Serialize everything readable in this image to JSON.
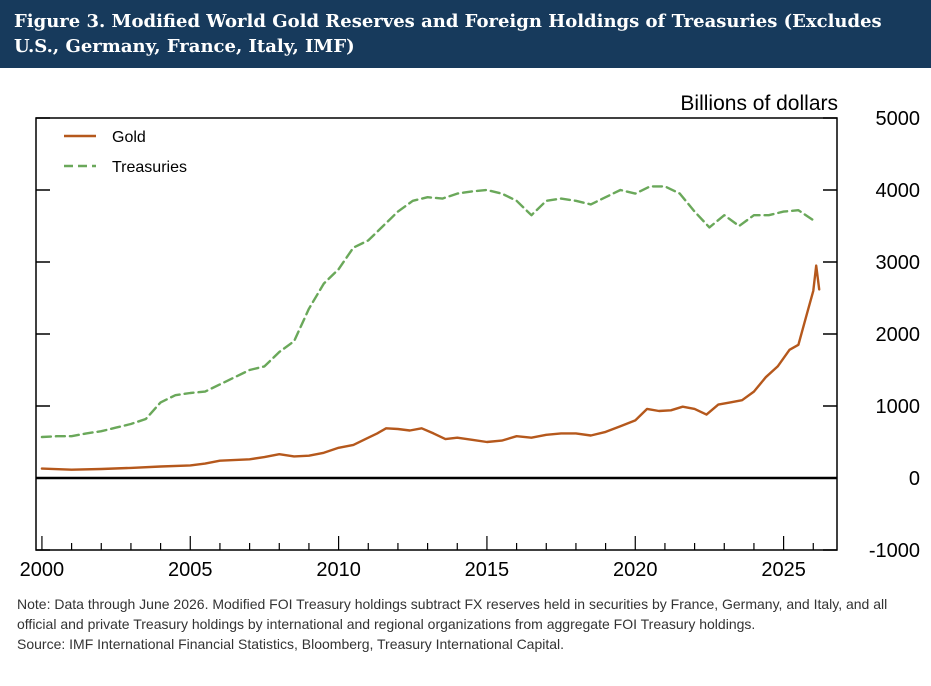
{
  "header": {
    "title": "Figure 3. Modified World Gold Reserves and Foreign Holdings of Treasuries (Excludes U.S., Germany, France, Italy, IMF)"
  },
  "colors": {
    "banner": "#173a5c",
    "gold": "#b5581c",
    "treasuries": "#6aa85a",
    "axis": "#000000"
  },
  "chart_data": {
    "type": "line",
    "ylabel": "Billions of dollars",
    "ylim": [
      -1000,
      5000
    ],
    "yticks": [
      -1000,
      0,
      1000,
      2000,
      3000,
      4000,
      5000
    ],
    "xlim": [
      1999.8,
      2026.8
    ],
    "xticks": [
      2000,
      2005,
      2010,
      2015,
      2020,
      2025
    ],
    "legend_position": "top-left",
    "grid": false,
    "zero_line": true,
    "series": [
      {
        "name": "Gold",
        "color": "#b5581c",
        "style": "solid",
        "x": [
          2000.0,
          2001.0,
          2002.0,
          2003.0,
          2004.0,
          2005.0,
          2005.5,
          2006.0,
          2007.0,
          2007.5,
          2008.0,
          2008.5,
          2009.0,
          2009.5,
          2010.0,
          2010.5,
          2011.0,
          2011.3,
          2011.6,
          2012.0,
          2012.4,
          2012.8,
          2013.2,
          2013.6,
          2014.0,
          2014.5,
          2015.0,
          2015.5,
          2016.0,
          2016.5,
          2017.0,
          2017.5,
          2018.0,
          2018.5,
          2019.0,
          2019.5,
          2020.0,
          2020.4,
          2020.8,
          2021.2,
          2021.6,
          2022.0,
          2022.4,
          2022.8,
          2023.2,
          2023.6,
          2024.0,
          2024.4,
          2024.8,
          2025.2,
          2025.5,
          2025.8,
          2026.0,
          2026.1,
          2026.2
        ],
        "y": [
          130,
          115,
          125,
          140,
          160,
          175,
          200,
          240,
          260,
          290,
          330,
          300,
          310,
          350,
          420,
          460,
          560,
          620,
          690,
          680,
          660,
          690,
          620,
          540,
          560,
          530,
          500,
          520,
          580,
          560,
          600,
          620,
          620,
          590,
          640,
          720,
          800,
          960,
          930,
          940,
          990,
          960,
          880,
          1020,
          1050,
          1080,
          1200,
          1400,
          1550,
          1780,
          1850,
          2300,
          2600,
          2950,
          2620
        ]
      },
      {
        "name": "Treasuries",
        "color": "#6aa85a",
        "style": "dashed",
        "x": [
          2000.0,
          2000.5,
          2001.0,
          2001.5,
          2002.0,
          2002.5,
          2003.0,
          2003.5,
          2004.0,
          2004.5,
          2005.0,
          2005.5,
          2006.0,
          2006.5,
          2007.0,
          2007.5,
          2008.0,
          2008.5,
          2009.0,
          2009.5,
          2010.0,
          2010.5,
          2011.0,
          2011.5,
          2012.0,
          2012.5,
          2013.0,
          2013.5,
          2014.0,
          2014.5,
          2015.0,
          2015.5,
          2016.0,
          2016.5,
          2017.0,
          2017.5,
          2018.0,
          2018.5,
          2019.0,
          2019.5,
          2020.0,
          2020.5,
          2021.0,
          2021.5,
          2022.0,
          2022.5,
          2023.0,
          2023.5,
          2024.0,
          2024.5,
          2025.0,
          2025.5,
          2026.0
        ],
        "y": [
          570,
          580,
          580,
          620,
          650,
          700,
          750,
          820,
          1050,
          1150,
          1180,
          1200,
          1300,
          1400,
          1500,
          1550,
          1750,
          1900,
          2350,
          2700,
          2900,
          3200,
          3300,
          3500,
          3700,
          3850,
          3900,
          3880,
          3950,
          3980,
          4000,
          3950,
          3850,
          3650,
          3850,
          3880,
          3850,
          3800,
          3900,
          4000,
          3950,
          4050,
          4050,
          3950,
          3700,
          3480,
          3650,
          3500,
          3650,
          3650,
          3700,
          3720,
          3580
        ]
      }
    ]
  },
  "note": {
    "line1": "Note: Data through June 2026. Modified FOI Treasury holdings subtract FX reserves held in securities by France, Germany, and Italy, and all official and private Treasury holdings by international and regional organizations from aggregate FOI Treasury holdings.",
    "source": "Source: IMF International Financial Statistics, Bloomberg, Treasury International Capital."
  }
}
